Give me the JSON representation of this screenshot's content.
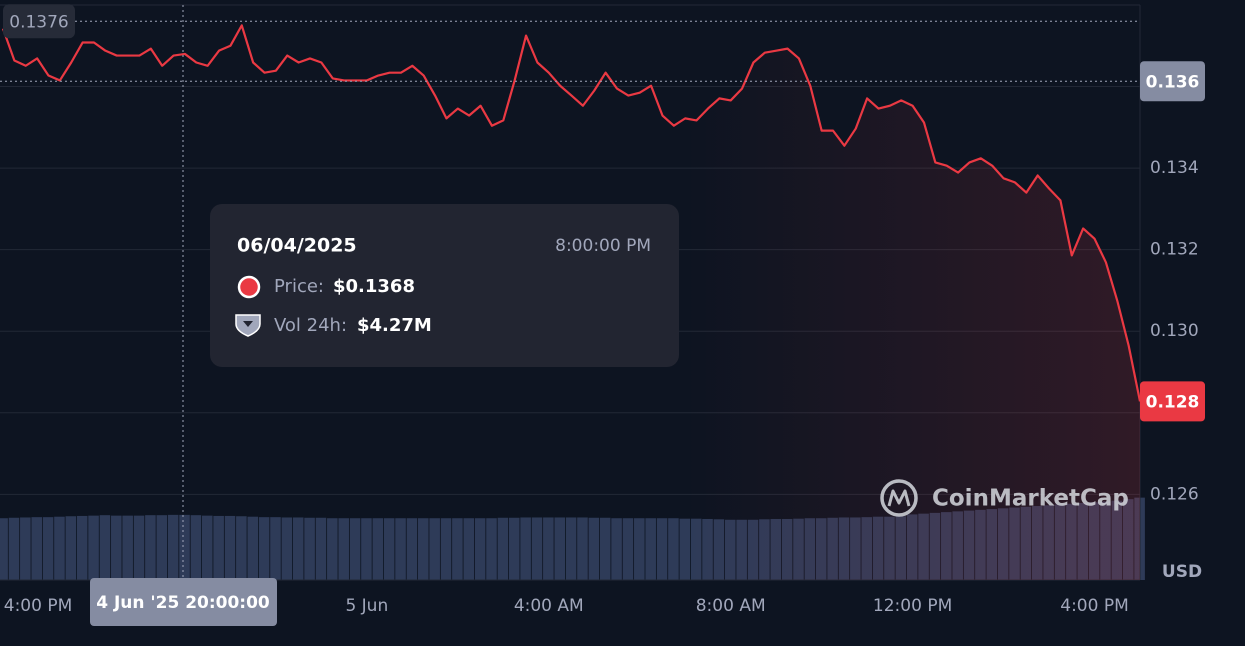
{
  "chart_data": {
    "type": "line",
    "ylim": [
      0.1239,
      0.138
    ],
    "yticks": [
      0.126,
      0.128,
      {
        "value": 0.13,
        "label": "0.130"
      },
      0.132,
      0.134,
      0.136
    ],
    "grid": true,
    "y_unit": "USD",
    "categories": [
      "4:00 PM",
      null,
      null,
      null,
      null,
      null,
      null,
      null,
      null,
      null,
      null,
      null,
      null,
      null,
      null,
      null,
      null,
      null,
      null,
      null,
      null,
      null,
      null,
      null,
      null,
      null,
      null,
      null,
      null,
      null,
      null,
      null,
      "5 Jun",
      null,
      null,
      null,
      null,
      null,
      null,
      null,
      null,
      null,
      null,
      null,
      null,
      null,
      null,
      null,
      "4:00 AM",
      null,
      null,
      null,
      null,
      null,
      null,
      null,
      null,
      null,
      null,
      null,
      null,
      null,
      null,
      null,
      "8:00 AM",
      null,
      null,
      null,
      null,
      null,
      null,
      null,
      null,
      null,
      null,
      null,
      null,
      null,
      null,
      null,
      "12:00 PM",
      null,
      null,
      null,
      null,
      null,
      null,
      null,
      null,
      null,
      null,
      null,
      null,
      null,
      null,
      null,
      "4:00 PM",
      null,
      null,
      null,
      null
    ],
    "series": [
      {
        "color": "#ea3943",
        "values": [
          0.13742,
          0.13664,
          0.13651,
          0.13669,
          0.13627,
          0.13615,
          0.13659,
          0.13708,
          0.13708,
          0.13688,
          0.13676,
          0.13676,
          0.13676,
          0.13693,
          0.13651,
          0.13676,
          0.1368,
          0.13659,
          0.13651,
          0.13688,
          0.137,
          0.1375,
          0.13659,
          0.13634,
          0.13639,
          0.13676,
          0.13659,
          0.13669,
          0.13659,
          0.1362,
          0.13615,
          0.13615,
          0.13615,
          0.13627,
          0.13634,
          0.13634,
          0.13651,
          0.13627,
          0.13578,
          0.13522,
          0.13546,
          0.13529,
          0.13553,
          0.13504,
          0.13517,
          0.13615,
          0.13725,
          0.13659,
          0.13634,
          0.13602,
          0.13578,
          0.13553,
          0.1359,
          0.13634,
          0.13595,
          0.13578,
          0.13585,
          0.13602,
          0.13529,
          0.13504,
          0.13522,
          0.13517,
          0.13546,
          0.13571,
          0.13566,
          0.13595,
          0.13659,
          0.13683,
          0.13688,
          0.13693,
          0.13669,
          0.13602,
          0.13492,
          0.13492,
          0.13455,
          0.13497,
          0.13571,
          0.13546,
          0.13553,
          0.13566,
          0.13553,
          0.13512,
          0.13414,
          0.13406,
          0.13389,
          0.13414,
          0.13424,
          0.13406,
          0.13375,
          0.13365,
          0.1334,
          0.13382,
          0.1335,
          0.13321,
          0.13186,
          0.13252,
          0.13227,
          0.13169,
          0.13075,
          0.12965,
          0.12828
        ]
      }
    ],
    "volume": {
      "color": "#323f5e",
      "lim": [
        0,
        5.9
      ],
      "values": [
        4.05,
        4.08,
        4.1,
        4.12,
        4.12,
        4.15,
        4.18,
        4.2,
        4.22,
        4.25,
        4.22,
        4.22,
        4.22,
        4.25,
        4.25,
        4.27,
        4.27,
        4.25,
        4.22,
        4.2,
        4.2,
        4.18,
        4.15,
        4.12,
        4.12,
        4.1,
        4.1,
        4.08,
        4.08,
        4.05,
        4.05,
        4.05,
        4.05,
        4.05,
        4.05,
        4.05,
        4.05,
        4.05,
        4.05,
        4.05,
        4.05,
        4.05,
        4.05,
        4.05,
        4.08,
        4.08,
        4.1,
        4.1,
        4.1,
        4.1,
        4.1,
        4.1,
        4.08,
        4.08,
        4.05,
        4.05,
        4.05,
        4.05,
        4.05,
        4.05,
        4.02,
        4.02,
        4.0,
        3.98,
        3.95,
        3.95,
        3.95,
        3.98,
        4.0,
        4.0,
        4.02,
        4.05,
        4.05,
        4.08,
        4.1,
        4.1,
        4.12,
        4.15,
        4.15,
        4.18,
        4.3,
        4.35,
        4.4,
        4.45,
        4.5,
        4.55,
        4.6,
        4.65,
        4.7,
        4.75,
        4.8,
        4.85,
        4.9,
        4.95,
        5.0,
        5.05,
        5.1,
        5.15,
        5.2,
        5.3,
        5.4
      ]
    },
    "high_marker": 0.1376,
    "price_tag": {
      "value": 0.12828,
      "label": "0.128"
    },
    "crosshair": {
      "x_label": "4 Jun '25 20:00:00",
      "y": {
        "value": 0.13613,
        "label": "0.136"
      }
    },
    "tooltip": {
      "date": "06/04/2025",
      "time": "8:00:00 PM",
      "price_label": "Price:",
      "price": "$0.1368",
      "volume_label": "Vol 24h:",
      "volume": "$4.27M"
    },
    "watermark": "CoinMarketCap"
  }
}
